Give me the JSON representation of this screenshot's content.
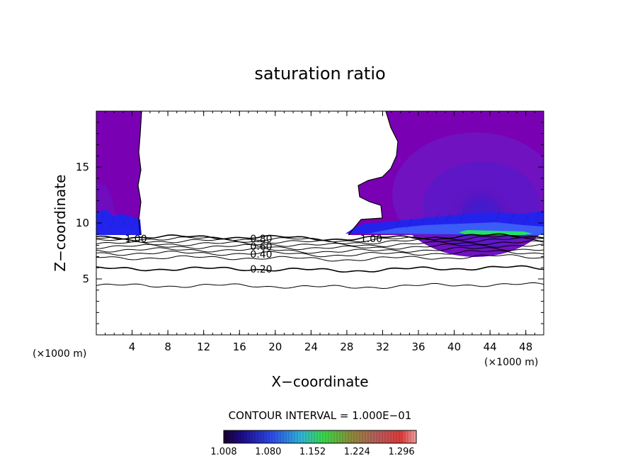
{
  "chart_data": {
    "type": "contour",
    "title": "saturation ratio",
    "xlabel": "X−coordinate",
    "ylabel": "Z−coordinate",
    "x_unit_label": "(×1000 m)",
    "y_unit_label": "(×1000 m)",
    "xlim": [
      0,
      50
    ],
    "ylim": [
      0,
      20
    ],
    "x_ticks": [
      4,
      8,
      12,
      16,
      20,
      24,
      28,
      32,
      36,
      40,
      44,
      48
    ],
    "y_ticks": [
      5,
      10,
      15
    ],
    "contour_levels": [
      0.1,
      0.2,
      0.3,
      0.4,
      0.5,
      0.6,
      0.7,
      0.8,
      0.9,
      1.0
    ],
    "contour_labels": [
      {
        "text": "1.00",
        "x": 3.2,
        "z": 8.6
      },
      {
        "text": "0.80",
        "x": 17.2,
        "z": 8.6
      },
      {
        "text": "0.60",
        "x": 17.2,
        "z": 7.9
      },
      {
        "text": "0.40",
        "x": 17.2,
        "z": 7.2
      },
      {
        "text": "0.20",
        "x": 17.2,
        "z": 5.9
      },
      {
        "text": "1.00",
        "x": 29.5,
        "z": 8.6
      }
    ],
    "contour_interval_text": "CONTOUR INTERVAL = 1.000E−01",
    "colorbar": {
      "min": 1.008,
      "max": 1.32,
      "tick_labels": [
        "1.008",
        "1.080",
        "1.152",
        "1.224",
        "1.296"
      ],
      "tick_values": [
        1.008,
        1.08,
        1.152,
        1.224,
        1.296
      ]
    },
    "grid": false,
    "colors": {
      "purple_high": "#7a00b4",
      "purple_mid": "#6a13c2",
      "blue_low": "#1f1ef0",
      "green_peak": "#22e06a"
    }
  }
}
